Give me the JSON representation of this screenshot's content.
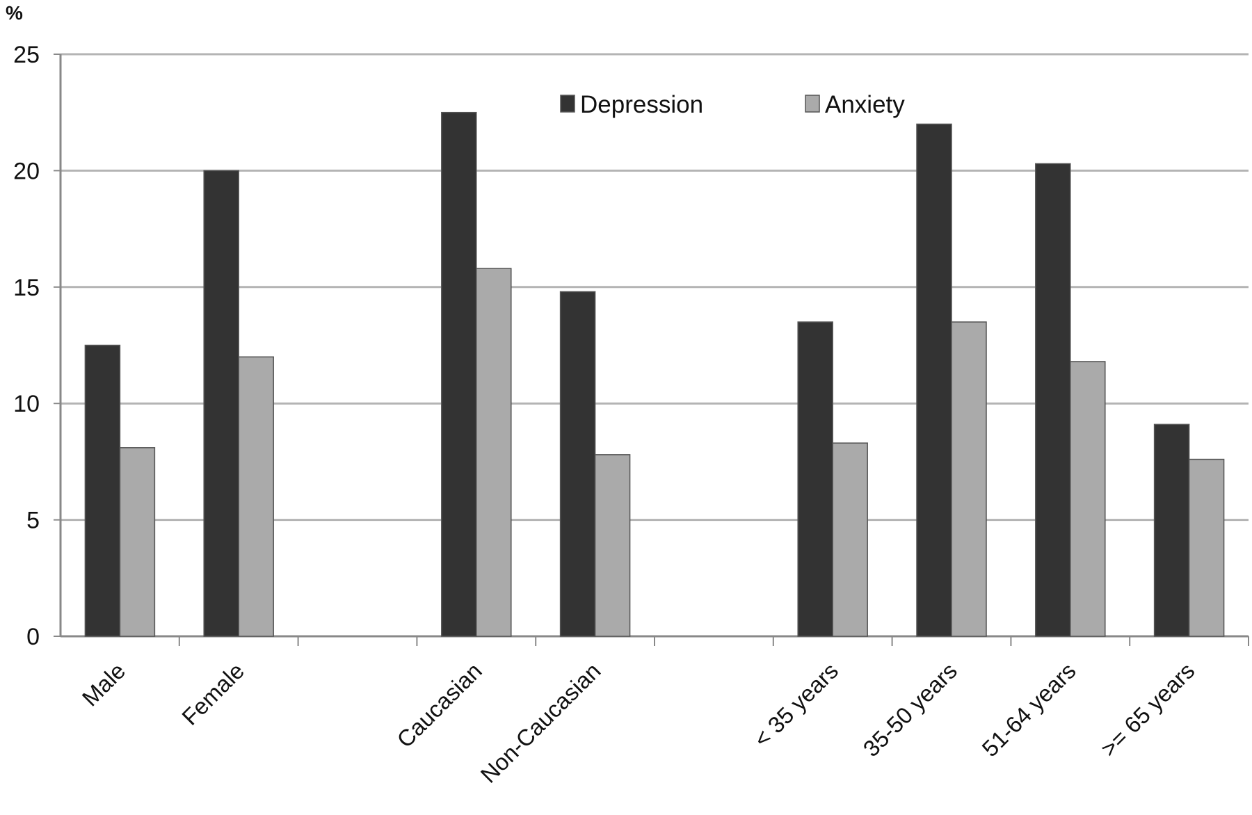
{
  "chart_data": {
    "type": "bar",
    "unit_label": "%",
    "categories": [
      "Male",
      "Female",
      "",
      "Caucasian",
      "Non-Caucasian",
      "",
      "< 35 years",
      "35-50 years",
      "51-64 years",
      ">= 65 years"
    ],
    "series": [
      {
        "name": "Depression",
        "color": "#333333",
        "values": [
          12.5,
          20.0,
          null,
          22.5,
          14.8,
          null,
          13.5,
          22.0,
          20.3,
          9.1
        ]
      },
      {
        "name": "Anxiety",
        "color": "#aaaaaa",
        "values": [
          8.1,
          12.0,
          null,
          15.8,
          7.8,
          null,
          8.3,
          13.5,
          11.8,
          7.6
        ]
      }
    ],
    "ylim": [
      0,
      25
    ],
    "yticks": [
      0,
      5,
      10,
      15,
      20,
      25
    ],
    "grid": true,
    "legend_position": "top-center",
    "xlabel": "",
    "ylabel": ""
  }
}
